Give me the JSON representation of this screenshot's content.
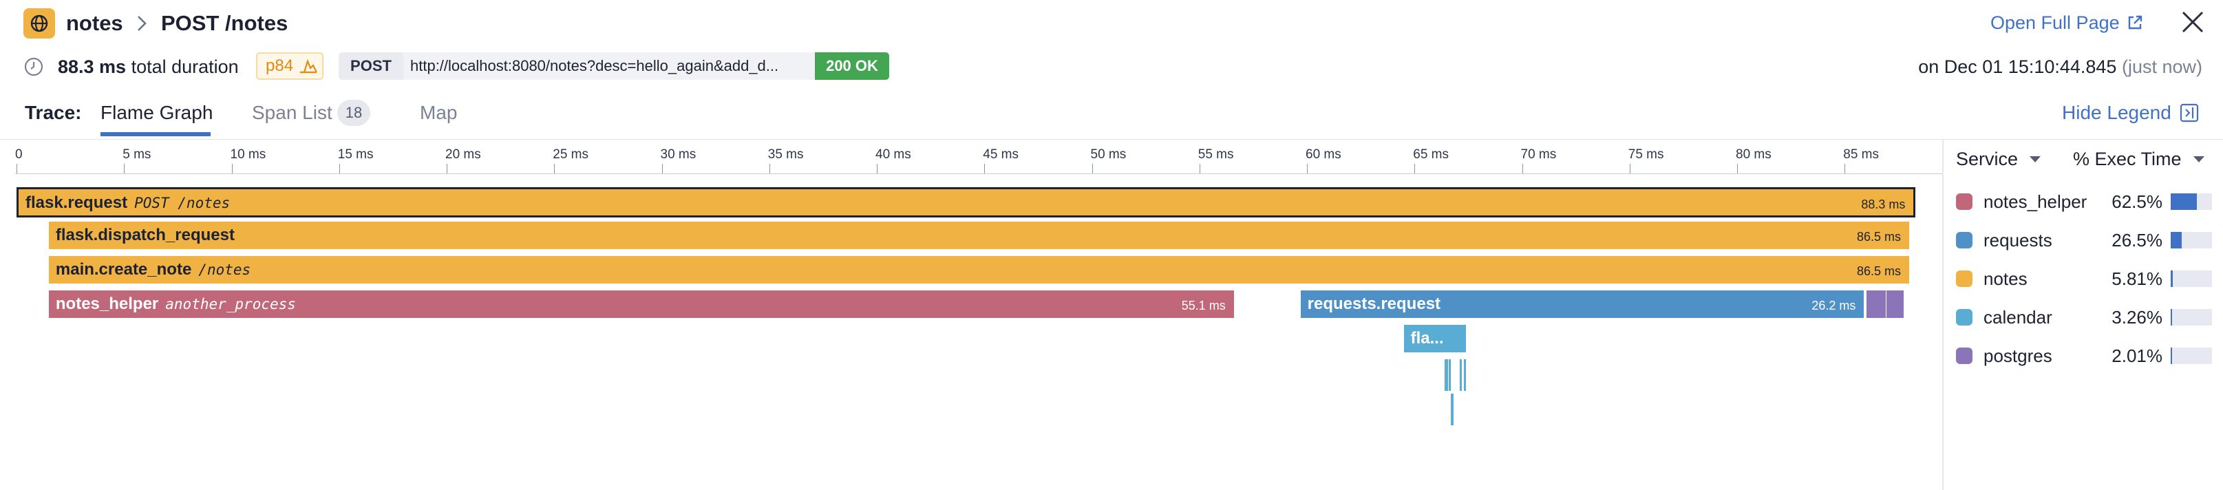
{
  "header": {
    "service": "notes",
    "resource": "POST /notes",
    "open_full_page": "Open Full Page"
  },
  "summary": {
    "duration": "88.3 ms",
    "duration_suffix": "total duration",
    "percentile": "p84",
    "method": "POST",
    "url": "http://localhost:8080/notes?desc=hello_again&add_d...",
    "status": "200 OK",
    "timestamp": "on Dec 01 15:10:44.845",
    "relative": "(just now)"
  },
  "tabs": {
    "trace_label": "Trace:",
    "flame_graph": "Flame Graph",
    "span_list": "Span List",
    "span_count": "18",
    "map": "Map",
    "hide_legend": "Hide Legend"
  },
  "timeline": {
    "unit": "ms",
    "total_ms": 88.3,
    "ticks": [
      "0",
      "5 ms",
      "10 ms",
      "15 ms",
      "20 ms",
      "25 ms",
      "30 ms",
      "35 ms",
      "40 ms",
      "45 ms",
      "50 ms",
      "55 ms",
      "60 ms",
      "65 ms",
      "70 ms",
      "75 ms",
      "80 ms",
      "85 ms"
    ]
  },
  "spans": [
    {
      "name": "flask.request",
      "resource": "POST /notes",
      "duration": "88.3 ms",
      "service": "notes",
      "start_ms": 0,
      "dur_ms": 88.3,
      "depth": 0
    },
    {
      "name": "flask.dispatch_request",
      "resource": "",
      "duration": "86.5 ms",
      "service": "notes",
      "start_ms": 1.5,
      "dur_ms": 86.5,
      "depth": 1
    },
    {
      "name": "main.create_note",
      "resource": "/notes",
      "duration": "86.5 ms",
      "service": "notes",
      "start_ms": 1.5,
      "dur_ms": 86.5,
      "depth": 2
    },
    {
      "name": "notes_helper",
      "resource": "another_process",
      "duration": "55.1 ms",
      "service": "notes_helper",
      "start_ms": 1.5,
      "dur_ms": 55.1,
      "depth": 3
    },
    {
      "name": "requests.request",
      "resource": "",
      "duration": "26.2 ms",
      "service": "requests",
      "start_ms": 59.7,
      "dur_ms": 26.2,
      "depth": 3
    },
    {
      "name": "",
      "resource": "",
      "duration": "",
      "service": "postgres",
      "start_ms": 86.0,
      "dur_ms": 0.9,
      "depth": 3
    },
    {
      "name": "",
      "resource": "",
      "duration": "",
      "service": "postgres",
      "start_ms": 86.95,
      "dur_ms": 0.8,
      "depth": 3
    },
    {
      "name": "fla...",
      "resource": "",
      "duration": "",
      "service": "calendar",
      "start_ms": 64.5,
      "dur_ms": 2.9,
      "depth": 4
    }
  ],
  "slivers": [
    {
      "start_ms": 66.4,
      "dur_ms": 0.15,
      "depth": 5
    },
    {
      "start_ms": 66.6,
      "dur_ms": 0.1,
      "depth": 5
    },
    {
      "start_ms": 67.1,
      "dur_ms": 0.1,
      "depth": 5
    },
    {
      "start_ms": 67.3,
      "dur_ms": 0.1,
      "depth": 5
    },
    {
      "start_ms": 66.7,
      "dur_ms": 0.12,
      "depth": 6
    }
  ],
  "legend": {
    "col_service": "Service",
    "col_exec": "% Exec Time",
    "items": [
      {
        "name": "notes_helper",
        "pct": "62.5%",
        "fraction": 0.625,
        "color": "#c0687a"
      },
      {
        "name": "requests",
        "pct": "26.5%",
        "fraction": 0.265,
        "color": "#4f91c7"
      },
      {
        "name": "notes",
        "pct": "5.81%",
        "fraction": 0.0581,
        "color": "#f0b243"
      },
      {
        "name": "calendar",
        "pct": "3.26%",
        "fraction": 0.0326,
        "color": "#59add5"
      },
      {
        "name": "postgres",
        "pct": "2.01%",
        "fraction": 0.0201,
        "color": "#8c74b8"
      }
    ]
  }
}
